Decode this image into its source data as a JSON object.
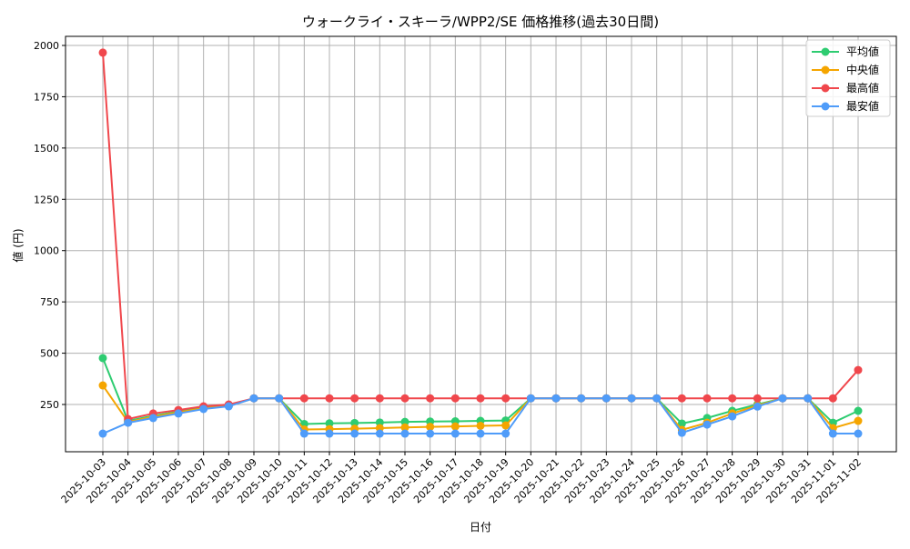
{
  "chart_data": {
    "type": "line",
    "title": "ウォークライ・スキーラ/WPP2/SE 価格推移(過去30日間)",
    "xlabel": "日付",
    "ylabel": "値 (円)",
    "ylim": [
      20,
      2060
    ],
    "yticks": [
      250,
      500,
      750,
      1000,
      1250,
      1500,
      1750,
      2000
    ],
    "grid": true,
    "legend_position": "upper right",
    "x": [
      "2025-10-03",
      "2025-10-04",
      "2025-10-05",
      "2025-10-06",
      "2025-10-07",
      "2025-10-08",
      "2025-10-09",
      "2025-10-10",
      "2025-10-11",
      "2025-10-12",
      "2025-10-13",
      "2025-10-14",
      "2025-10-15",
      "2025-10-16",
      "2025-10-17",
      "2025-10-18",
      "2025-10-19",
      "2025-10-20",
      "2025-10-21",
      "2025-10-22",
      "2025-10-23",
      "2025-10-24",
      "2025-10-25",
      "2025-10-26",
      "2025-10-27",
      "2025-10-28",
      "2025-10-29",
      "2025-10-30",
      "2025-10-31",
      "2025-11-01",
      "2025-11-02"
    ],
    "series": [
      {
        "name": "平均値",
        "color": "#2ecc71",
        "values": [
          476,
          170,
          195,
          215,
          235,
          245,
          280,
          280,
          155,
          158,
          160,
          162,
          165,
          167,
          168,
          170,
          172,
          280,
          280,
          280,
          280,
          280,
          280,
          157,
          184,
          219,
          250,
          280,
          280,
          161,
          219
        ]
      },
      {
        "name": "中央値",
        "color": "#f5a500",
        "values": [
          343,
          165,
          190,
          212,
          232,
          243,
          280,
          280,
          128,
          130,
          132,
          135,
          138,
          141,
          143,
          146,
          148,
          280,
          280,
          280,
          280,
          280,
          280,
          126,
          161,
          206,
          245,
          280,
          280,
          135,
          170
        ]
      },
      {
        "name": "最高値",
        "color": "#f0474c",
        "values": [
          1965,
          179,
          206,
          223,
          241,
          250,
          280,
          280,
          280,
          280,
          280,
          280,
          280,
          280,
          280,
          280,
          280,
          280,
          280,
          280,
          280,
          280,
          280,
          280,
          280,
          280,
          280,
          280,
          280,
          280,
          418
        ]
      },
      {
        "name": "最安値",
        "color": "#4f9cf9",
        "values": [
          108,
          161,
          184,
          206,
          228,
          241,
          280,
          280,
          108,
          108,
          108,
          108,
          108,
          108,
          108,
          108,
          108,
          280,
          280,
          280,
          280,
          280,
          280,
          112,
          152,
          192,
          240,
          280,
          280,
          108,
          108
        ]
      }
    ]
  }
}
